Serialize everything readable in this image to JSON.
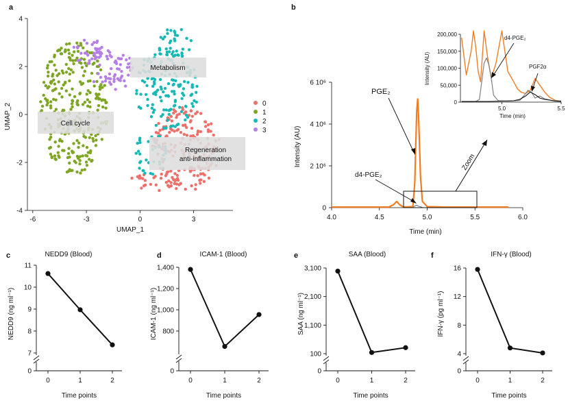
{
  "colors": {
    "cluster": [
      "#ef6f6a",
      "#7ea624",
      "#17b9b6",
      "#b67fe6"
    ],
    "orange": "#f07d25",
    "grey": "#808080",
    "black": "#111111",
    "box": "#dddddd"
  },
  "chart_data": [
    {
      "panel": "a",
      "type": "scatter",
      "xlabel": "UMAP_1",
      "ylabel": "UMAP_2",
      "xticks": [
        -6,
        -3,
        0,
        3
      ],
      "yticks": [
        -4,
        -2,
        0,
        2,
        4
      ],
      "xlim": [
        -6.3,
        5.2
      ],
      "ylim": [
        -4,
        4
      ],
      "legend": {
        "placement": "right",
        "entries": [
          "0",
          "1",
          "2",
          "3"
        ]
      },
      "annotations": [
        "Metabolism",
        "Cell cycle",
        "Regeneration",
        "anti-inflammation"
      ],
      "clusters": [
        {
          "name": "0",
          "ellipses": [
            [
              2.6,
              -1.4,
              1.9,
              1.8,
              190
            ],
            [
              0.8,
              -2.7,
              1.4,
              0.5,
              25
            ]
          ]
        },
        {
          "name": "1",
          "ellipses": [
            [
              -3.7,
              0.3,
              1.9,
              2.8,
              300
            ]
          ]
        },
        {
          "name": "2",
          "ellipses": [
            [
              1.5,
              1.1,
              1.8,
              1.7,
              150
            ],
            [
              0.6,
              -1.7,
              1.0,
              0.9,
              35
            ],
            [
              2.0,
              3.0,
              1.0,
              0.6,
              30
            ]
          ]
        },
        {
          "name": "3",
          "ellipses": [
            [
              -1.7,
              1.9,
              1.3,
              1.0,
              70
            ],
            [
              -3.0,
              2.7,
              0.9,
              0.6,
              20
            ]
          ]
        }
      ]
    },
    {
      "panel": "b",
      "type": "line",
      "xlabel": "Time (min)",
      "ylabel": "Intensity (AU)",
      "xlim": [
        4.0,
        6.0
      ],
      "ylim": [
        0,
        6
      ],
      "xticks": [
        "4.0",
        "4.5",
        "5.0",
        "5.5",
        "6.0"
      ],
      "yticks": [
        "0",
        "2 10⁶",
        "4 10⁶",
        "6 10⁶"
      ],
      "labels": {
        "pge": "PGE₂",
        "d4": "d4-PGE₂",
        "zoom": "Zoom"
      },
      "series": [
        {
          "name": "PGE₂",
          "x": [
            4.0,
            4.6,
            4.65,
            4.68,
            4.71,
            4.75,
            4.85,
            4.87,
            4.88,
            4.89,
            4.9,
            4.91,
            4.93,
            4.95,
            5.0,
            5.2,
            5.85
          ],
          "y": [
            0.03,
            0.03,
            0.15,
            0.3,
            0.15,
            0.03,
            0.05,
            1.2,
            3.0,
            4.6,
            5.2,
            4.4,
            1.5,
            0.3,
            0.05,
            0.03,
            0.03
          ]
        },
        {
          "x": [
            4.85,
            4.87,
            4.89,
            4.91,
            4.95
          ],
          "y": [
            0.02,
            0.08,
            0.12,
            0.07,
            0.02
          ]
        }
      ],
      "inset": {
        "xlabel": "Time (min)",
        "ylabel": "Intensity (AU)",
        "xlim": [
          4.65,
          5.5
        ],
        "ylim": [
          0,
          200000
        ],
        "xticks": [
          "5.0",
          "5.5"
        ],
        "yticks": [
          "0",
          "50,000",
          "100,000",
          "150,000",
          "200,000"
        ],
        "labels": {
          "d4": "d4-PGE₂",
          "pgf": "PGF2α"
        },
        "series": [
          {
            "x": [
              4.66,
              4.7,
              4.74,
              4.76,
              4.78,
              4.8,
              4.82,
              4.85,
              4.88,
              4.91,
              4.95,
              5.0,
              5.05,
              5.1,
              5.13,
              5.16,
              5.2,
              5.24,
              5.28,
              5.32,
              5.36,
              5.4,
              5.45,
              5.5
            ],
            "y": [
              190000,
              80000,
              150000,
              210000,
              160000,
              90000,
              60000,
              210000,
              130000,
              70000,
              115000,
              210000,
              90000,
              60000,
              40000,
              30000,
              25000,
              35000,
              70000,
              50000,
              30000,
              15000,
              5000,
              3000
            ]
          },
          {
            "x": [
              4.66,
              4.78,
              4.81,
              4.83,
              4.85,
              4.87,
              4.89,
              4.91,
              4.93,
              4.97,
              5.05,
              5.15,
              5.2,
              5.22,
              5.25,
              5.28,
              5.32,
              5.36,
              5.42,
              5.5
            ],
            "y": [
              2000,
              2000,
              8000,
              60000,
              115000,
              130000,
              110000,
              70000,
              20000,
              4000,
              3000,
              5000,
              25000,
              35000,
              28000,
              12000,
              18000,
              10000,
              5000,
              3000
            ]
          }
        ]
      }
    },
    {
      "panel": "c",
      "type": "line",
      "title": "NEDD9 (Blood)",
      "ylabel": "NEDD9 (ng ml⁻¹)",
      "xlabel": "Time points",
      "categories": [
        "0",
        "1",
        "2"
      ],
      "values": [
        10.62,
        8.97,
        7.37
      ],
      "ylim": [
        7,
        11
      ],
      "yticks": [
        "7",
        "8",
        "9",
        "10",
        "11"
      ],
      "ybreak": "0"
    },
    {
      "panel": "d",
      "type": "line",
      "title": "ICAM-1 (Blood)",
      "ylabel": "ICAM-1 (ng ml⁻¹)",
      "xlabel": "Time points",
      "categories": [
        "0",
        "1",
        "2"
      ],
      "values": [
        1380,
        655,
        955
      ],
      "ylim": [
        600,
        1400
      ],
      "yticks": [
        "800",
        "1,000",
        "1,200",
        "1,400"
      ],
      "ybreak": "0"
    },
    {
      "panel": "e",
      "type": "line",
      "title": "SAA (Blood)",
      "ylabel": "SAA (ng ml⁻¹)",
      "xlabel": "Time points",
      "categories": [
        "0",
        "1",
        "2"
      ],
      "values": [
        2990,
        140,
        310
      ],
      "ylim": [
        100,
        3100
      ],
      "yticks": [
        "100",
        "1,100",
        "2,100",
        "3,100"
      ],
      "ybreak": "0"
    },
    {
      "panel": "f",
      "type": "line",
      "title": "IFN-γ (Blood)",
      "ylabel": "IFN-γ (pg ml⁻¹)",
      "xlabel": "Time points",
      "categories": [
        "0",
        "1",
        "2"
      ],
      "values": [
        15.8,
        4.8,
        4.1
      ],
      "ylim": [
        4,
        16
      ],
      "yticks": [
        "4",
        "8",
        "12",
        "16"
      ],
      "ybreak": "0"
    }
  ]
}
